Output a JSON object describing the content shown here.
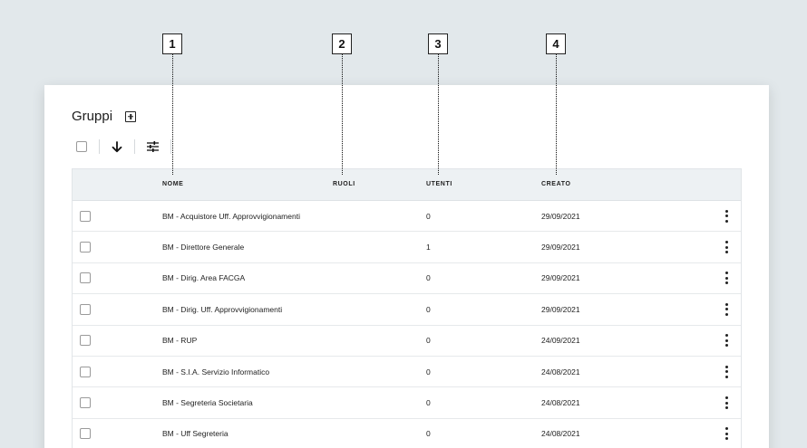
{
  "callouts": [
    "1",
    "2",
    "3",
    "4"
  ],
  "page": {
    "title": "Gruppi",
    "add_icon": "add-box-icon"
  },
  "toolbar": {
    "select_all_icon": "checkbox-icon",
    "sort_icon": "arrow-down-icon",
    "filter_icon": "tune-sliders-icon"
  },
  "table": {
    "columns": [
      "NOME",
      "RUOLI",
      "UTENTI",
      "CREATO"
    ],
    "rows": [
      {
        "nome": "BM - Acquistore Uff. Approvvigionamenti",
        "ruoli": "",
        "utenti": "0",
        "creato": "29/09/2021"
      },
      {
        "nome": "BM - Direttore Generale",
        "ruoli": "",
        "utenti": "1",
        "creato": "29/09/2021"
      },
      {
        "nome": "BM - Dirig. Area FACGA",
        "ruoli": "",
        "utenti": "0",
        "creato": "29/09/2021"
      },
      {
        "nome": "BM - Dirig. Uff. Approvvigionamenti",
        "ruoli": "",
        "utenti": "0",
        "creato": "29/09/2021"
      },
      {
        "nome": "BM - RUP",
        "ruoli": "",
        "utenti": "0",
        "creato": "24/09/2021"
      },
      {
        "nome": "BM - S.I.A. Servizio Informatico",
        "ruoli": "",
        "utenti": "0",
        "creato": "24/08/2021"
      },
      {
        "nome": "BM - Segreteria Societaria",
        "ruoli": "",
        "utenti": "0",
        "creato": "24/08/2021"
      },
      {
        "nome": "BM - Uff Segreteria",
        "ruoli": "",
        "utenti": "0",
        "creato": "24/08/2021"
      }
    ],
    "row_menu_icon": "more-vertical-icon"
  },
  "colors": {
    "background": "#e2e8eb",
    "header_bg": "#edf1f3",
    "text": "#1c1c1c"
  }
}
